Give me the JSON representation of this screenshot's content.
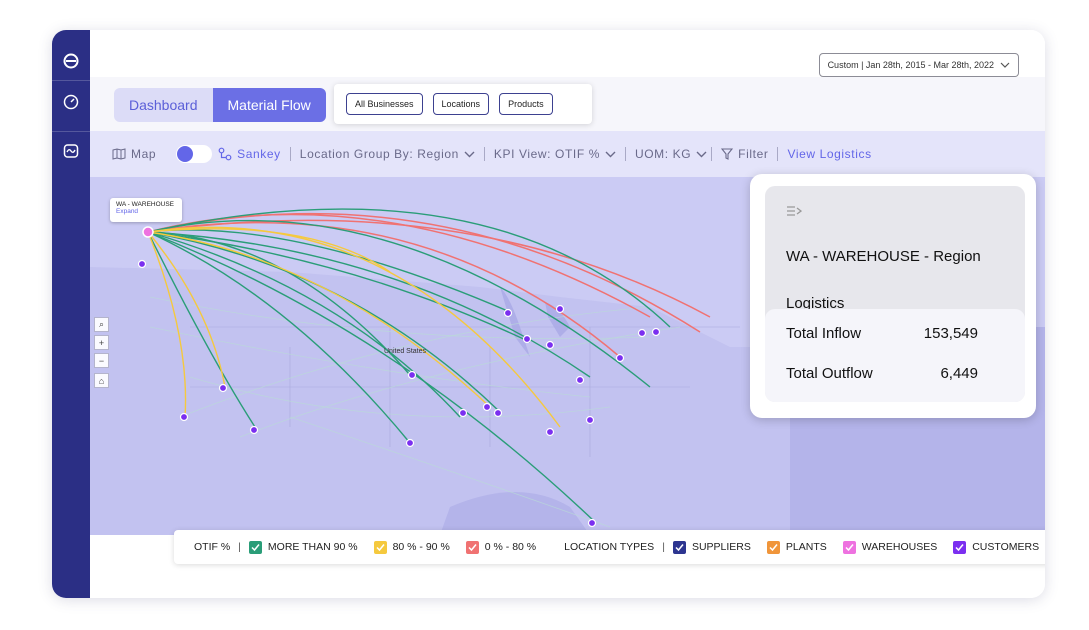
{
  "header": {
    "date_range": "Custom | Jan 28th, 2015 - Mar 28th, 2022"
  },
  "tabs": [
    {
      "label": "Dashboard",
      "active": false
    },
    {
      "label": "Material Flow",
      "active": true
    }
  ],
  "filters": [
    "All Businesses",
    "Locations",
    "Products"
  ],
  "toolbar": {
    "map_label": "Map",
    "sankey_label": "Sankey",
    "location_group": "Location Group By: Region",
    "kpi_view": "KPI View: OTIF %",
    "uom": "UOM: KG",
    "filter_label": "Filter",
    "view_logistics": "View Logistics"
  },
  "map": {
    "tooltip_title": "WA - WAREHOUSE",
    "tooltip_action": "Expand",
    "label_country": "United States",
    "controls": [
      "search-icon",
      "zoom-in-icon",
      "zoom-out-icon",
      "home-icon"
    ]
  },
  "panel": {
    "title": "WA - WAREHOUSE - Region",
    "subtitle": "Logistics",
    "inflow_label": "Total Inflow",
    "inflow_value": "153,549",
    "outflow_label": "Total Outflow",
    "outflow_value": "6,449"
  },
  "legend": {
    "otif_label": "OTIF %",
    "otif_items": [
      {
        "label": "MORE THAN 90 %",
        "color": "#2a9d78"
      },
      {
        "label": "80 % - 90 %",
        "color": "#f5c93e"
      },
      {
        "label": "0 % - 80 %",
        "color": "#f07272"
      }
    ],
    "location_label": "LOCATION TYPES",
    "location_items": [
      {
        "label": "SUPPLIERS",
        "color": "#2d3590"
      },
      {
        "label": "PLANTS",
        "color": "#f0953a"
      },
      {
        "label": "WAREHOUSES",
        "color": "#ee72e0"
      },
      {
        "label": "CUSTOMERS",
        "color": "#7b2ff0"
      }
    ]
  },
  "colors": {
    "sidebar": "#2b2f85",
    "accent": "#6366e8",
    "map_bg": "#c5c5f2"
  }
}
